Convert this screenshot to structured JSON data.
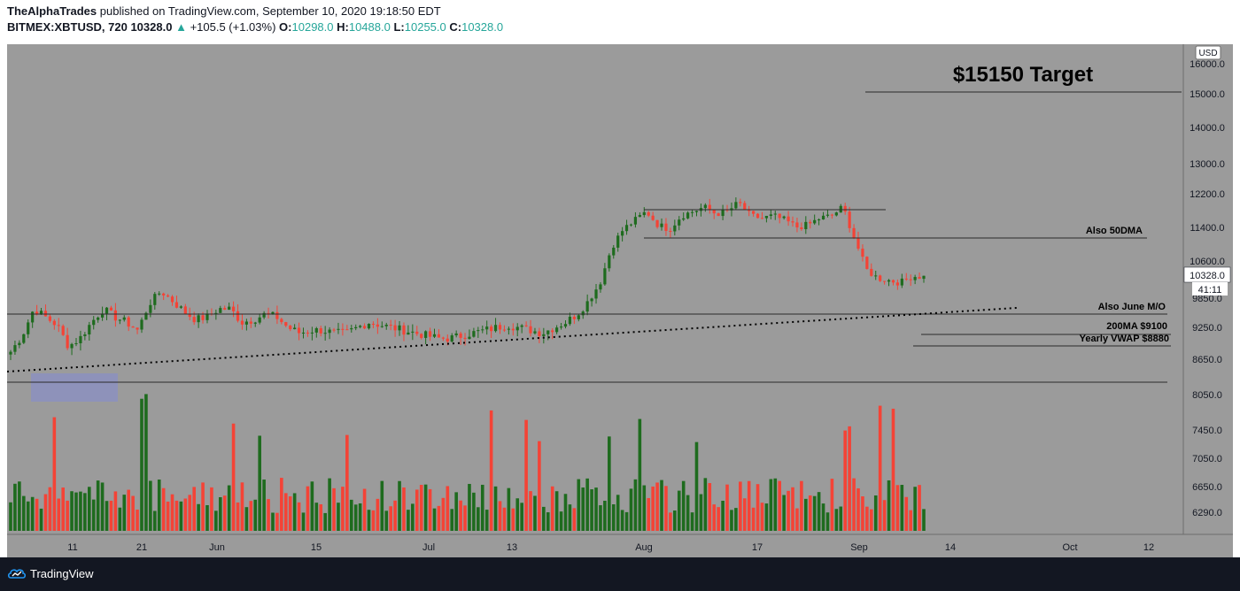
{
  "header": {
    "author": "TheAlphaTrades",
    "published_text": "published on TradingView.com, September 10, 2020 19:18:50 EDT",
    "symbol": "BITMEX:XBTUSD, 720",
    "last": "10328.0",
    "change": "+105.5 (+1.03%)",
    "open_label": "O:",
    "open": "10298.0",
    "high_label": "H:",
    "high": "10488.0",
    "low_label": "L:",
    "low": "10255.0",
    "close_label": "C:",
    "close": "10328.0"
  },
  "footer": {
    "brand": "TradingView"
  },
  "colors": {
    "background": "#9b9b9b",
    "up": "#1e6b1e",
    "down": "#f44336",
    "accent": "#26a69a",
    "zone": "#8a8fc4"
  },
  "chart_data": {
    "type": "candlestick",
    "price_axis": {
      "currency": "USD",
      "ticks": [
        "16000.0",
        "15000.0",
        "14000.0",
        "13000.0",
        "12200.0",
        "11400.0",
        "10600.0",
        "9850.0",
        "9250.0",
        "8650.0",
        "8050.0",
        "7450.0",
        "7050.0",
        "6650.0",
        "6290.0"
      ],
      "last_price_label": "10328.0",
      "countdown_label": "41:11"
    },
    "date_axis": {
      "ticks": [
        "11",
        "21",
        "Jun",
        "15",
        "Jul",
        "13",
        "Aug",
        "17",
        "Sep",
        "14",
        "Oct",
        "12"
      ]
    },
    "annotations": {
      "target_label": "$15150 Target",
      "target_price": 15150,
      "fifty_dma_label": "Also 50DMA",
      "june_mo_label": "Also June M/O",
      "ma200_label": "200MA $9100",
      "vwap_label": "Yearly VWAP $8880"
    },
    "series_approx_close": [
      8850,
      9150,
      9650,
      9500,
      9350,
      8950,
      9100,
      9400,
      9650,
      9500,
      9400,
      9250,
      9750,
      10000,
      9800,
      9600,
      9450,
      9500,
      9650,
      9650,
      9400,
      9450,
      9550,
      9500,
      9300,
      9200,
      9250,
      9250,
      9200,
      9200,
      9300,
      9400,
      9350,
      9300,
      9250,
      9200,
      9150,
      9100,
      9100,
      9150,
      9200,
      9250,
      9300,
      9350,
      9300,
      9250,
      9200,
      9300,
      9400,
      9550,
      9800,
      10200,
      11000,
      11400,
      11600,
      11800,
      11500,
      11400,
      11700,
      11800,
      11900,
      11750,
      11800,
      12000,
      11700,
      11650,
      11700,
      11600,
      11450,
      11500,
      11650,
      11700,
      11900,
      11200,
      10500,
      10300,
      10250,
      10200,
      10350,
      10328
    ]
  }
}
